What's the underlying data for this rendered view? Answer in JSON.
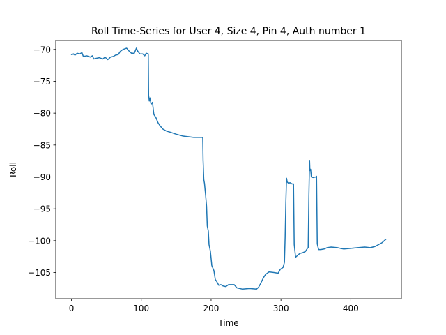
{
  "chart_data": {
    "type": "line",
    "title": "Roll Time-Series for User 4, Size 4, Pin 4, Auth number 1",
    "xlabel": "Time",
    "ylabel": "Roll",
    "xlim": [
      -22.5,
      472.5
    ],
    "ylim": [
      -109.1,
      -68.6
    ],
    "xticks": [
      0,
      100,
      200,
      300,
      400
    ],
    "yticks": [
      -70,
      -75,
      -80,
      -85,
      -90,
      -95,
      -100,
      -105
    ],
    "grid": false,
    "series": [
      {
        "color": "#1f77b4",
        "points": [
          [
            0,
            -70.8
          ],
          [
            3,
            -70.7
          ],
          [
            5,
            -70.9
          ],
          [
            8,
            -70.6
          ],
          [
            12,
            -70.7
          ],
          [
            15,
            -70.5
          ],
          [
            17,
            -71.1
          ],
          [
            22,
            -71.0
          ],
          [
            27,
            -71.2
          ],
          [
            30,
            -71.0
          ],
          [
            32,
            -71.5
          ],
          [
            35,
            -71.4
          ],
          [
            40,
            -71.3
          ],
          [
            45,
            -71.5
          ],
          [
            48,
            -71.2
          ],
          [
            52,
            -71.6
          ],
          [
            56,
            -71.2
          ],
          [
            60,
            -71.1
          ],
          [
            63,
            -70.9
          ],
          [
            67,
            -70.8
          ],
          [
            70,
            -70.3
          ],
          [
            74,
            -70.0
          ],
          [
            79,
            -69.8
          ],
          [
            82,
            -70.2
          ],
          [
            86,
            -70.6
          ],
          [
            90,
            -70.6
          ],
          [
            93,
            -69.8
          ],
          [
            95,
            -70.3
          ],
          [
            98,
            -70.7
          ],
          [
            102,
            -70.7
          ],
          [
            105,
            -71.0
          ],
          [
            107,
            -70.6
          ],
          [
            110,
            -70.7
          ],
          [
            110.5,
            -77.2
          ],
          [
            111.5,
            -78.1
          ],
          [
            112.5,
            -77.6
          ],
          [
            114,
            -78.6
          ],
          [
            116,
            -78.3
          ],
          [
            118,
            -80.2
          ],
          [
            121,
            -80.7
          ],
          [
            124,
            -81.5
          ],
          [
            127,
            -82.0
          ],
          [
            131,
            -82.5
          ],
          [
            136,
            -82.8
          ],
          [
            142,
            -83.0
          ],
          [
            150,
            -83.3
          ],
          [
            160,
            -83.6
          ],
          [
            175,
            -83.8
          ],
          [
            188,
            -83.8
          ],
          [
            188.5,
            -87.3
          ],
          [
            189.5,
            -90.4
          ],
          [
            190.5,
            -91.0
          ],
          [
            192,
            -92.7
          ],
          [
            193.5,
            -94.6
          ],
          [
            194.5,
            -97.7
          ],
          [
            196,
            -98.5
          ],
          [
            197,
            -100.6
          ],
          [
            199,
            -101.7
          ],
          [
            201,
            -103.9
          ],
          [
            204,
            -104.7
          ],
          [
            206,
            -106.1
          ],
          [
            208,
            -106.4
          ],
          [
            211,
            -107.0
          ],
          [
            214,
            -106.9
          ],
          [
            217,
            -107.1
          ],
          [
            221,
            -107.2
          ],
          [
            225,
            -106.9
          ],
          [
            233,
            -106.9
          ],
          [
            237,
            -107.4
          ],
          [
            245,
            -107.6
          ],
          [
            255,
            -107.5
          ],
          [
            265,
            -107.6
          ],
          [
            268,
            -107.3
          ],
          [
            271,
            -106.7
          ],
          [
            275,
            -105.8
          ],
          [
            278,
            -105.3
          ],
          [
            283,
            -104.9
          ],
          [
            290,
            -105.0
          ],
          [
            296,
            -105.1
          ],
          [
            299,
            -104.5
          ],
          [
            303,
            -104.2
          ],
          [
            305,
            -103.4
          ],
          [
            306,
            -99.5
          ],
          [
            307,
            -94.0
          ],
          [
            308,
            -90.2
          ],
          [
            309,
            -90.8
          ],
          [
            311,
            -91.0
          ],
          [
            313,
            -90.9
          ],
          [
            316,
            -91.1
          ],
          [
            318,
            -91.1
          ],
          [
            319,
            -100.6
          ],
          [
            321,
            -102.6
          ],
          [
            324,
            -102.3
          ],
          [
            327,
            -102.0
          ],
          [
            331,
            -101.9
          ],
          [
            335,
            -101.7
          ],
          [
            338,
            -101.2
          ],
          [
            339,
            -101.1
          ],
          [
            340,
            -93.0
          ],
          [
            341,
            -87.4
          ],
          [
            341.5,
            -89.0
          ],
          [
            342.5,
            -88.8
          ],
          [
            343.5,
            -90.0
          ],
          [
            346,
            -90.1
          ],
          [
            350,
            -90.0
          ],
          [
            351,
            -89.9
          ],
          [
            352,
            -100.5
          ],
          [
            354,
            -101.4
          ],
          [
            357,
            -101.4
          ],
          [
            362,
            -101.3
          ],
          [
            366,
            -101.1
          ],
          [
            372,
            -101.0
          ],
          [
            381,
            -101.1
          ],
          [
            385,
            -101.2
          ],
          [
            390,
            -101.3
          ],
          [
            400,
            -101.2
          ],
          [
            410,
            -101.1
          ],
          [
            420,
            -101.0
          ],
          [
            428,
            -101.1
          ],
          [
            435,
            -100.9
          ],
          [
            440,
            -100.6
          ],
          [
            445,
            -100.3
          ],
          [
            450,
            -99.8
          ]
        ]
      }
    ]
  }
}
